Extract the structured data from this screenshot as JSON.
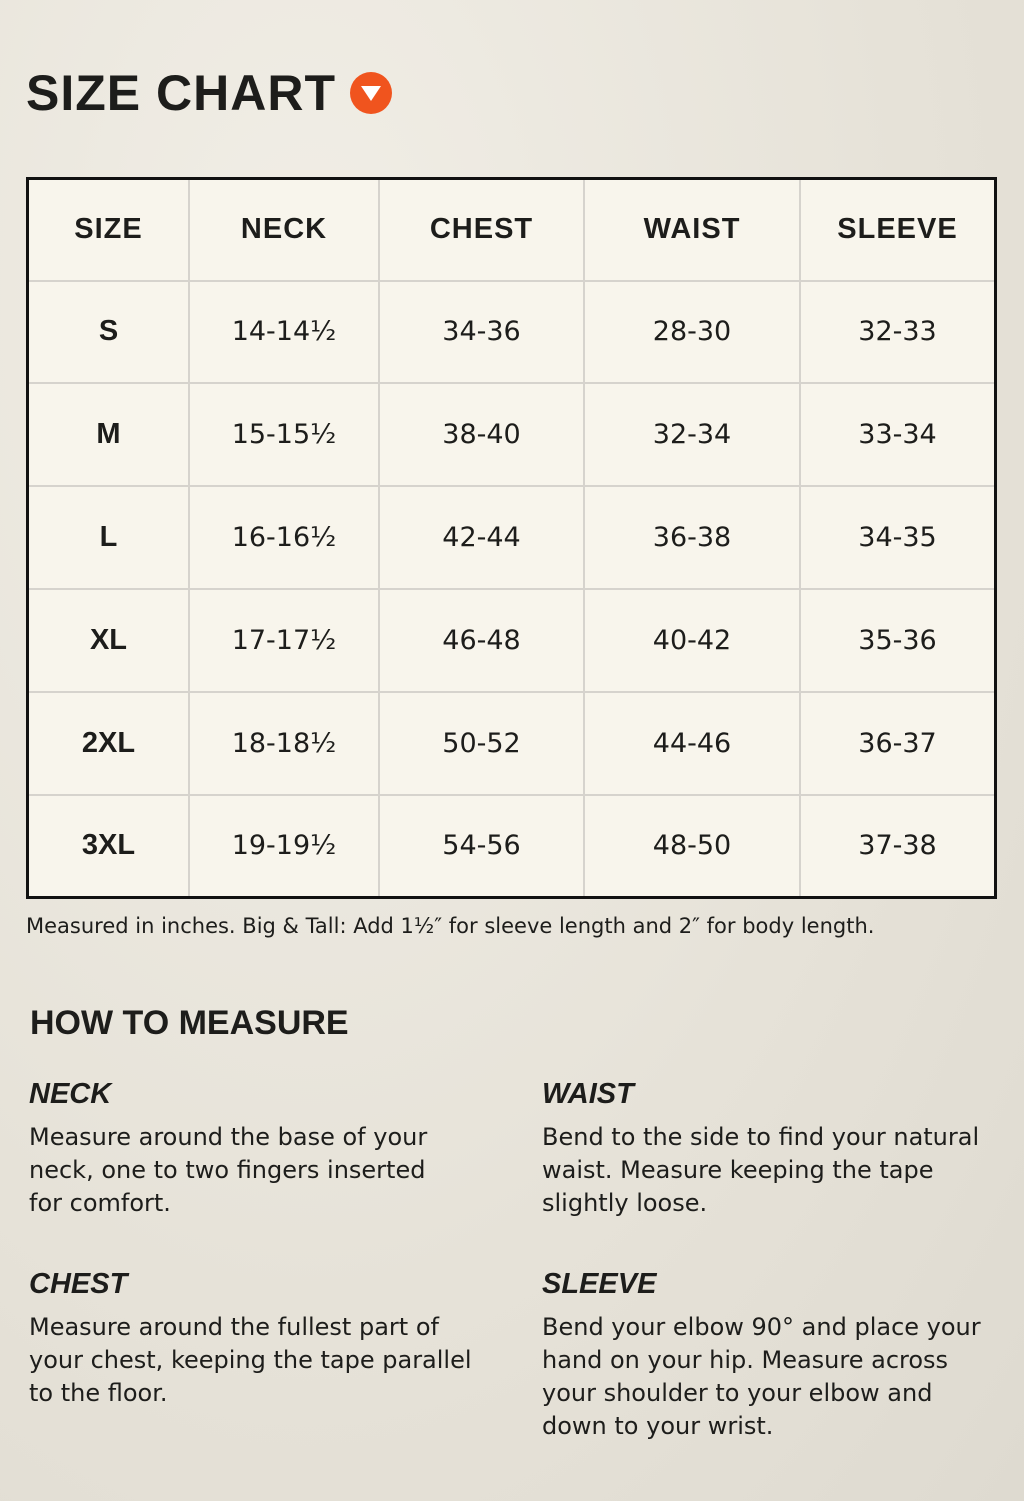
{
  "title": "SIZE CHART",
  "accent_color": "#f0541e",
  "title_icon": "triangle-down-circle-icon",
  "table": {
    "headers": [
      "SIZE",
      "NECK",
      "CHEST",
      "WAIST",
      "SLEEVE"
    ],
    "rows": [
      [
        "S",
        "14-14½",
        "34-36",
        "28-30",
        "32-33"
      ],
      [
        "M",
        "15-15½",
        "38-40",
        "32-34",
        "33-34"
      ],
      [
        "L",
        "16-16½",
        "42-44",
        "36-38",
        "34-35"
      ],
      [
        "XL",
        "17-17½",
        "46-48",
        "40-42",
        "35-36"
      ],
      [
        "2XL",
        "18-18½",
        "50-52",
        "44-46",
        "36-37"
      ],
      [
        "3XL",
        "19-19½",
        "54-56",
        "48-50",
        "37-38"
      ]
    ]
  },
  "note": "Measured in inches. Big & Tall: Add 1½″ for sleeve length and 2″ for body length.",
  "how_to": {
    "title": "HOW TO MEASURE",
    "sections": [
      {
        "title": "NECK",
        "text": "Measure around the base of your neck, one to two fingers inserted for comfort."
      },
      {
        "title": "WAIST",
        "text": "Bend to the side to find your natural waist. Measure keeping the tape slightly loose."
      },
      {
        "title": "CHEST",
        "text": "Measure around the fullest part of your chest, keeping the tape parallel to the floor."
      },
      {
        "title": "SLEEVE",
        "text": "Bend your elbow 90° and place your hand on your hip. Measure across your shoulder to your elbow and down to your wrist."
      }
    ]
  }
}
